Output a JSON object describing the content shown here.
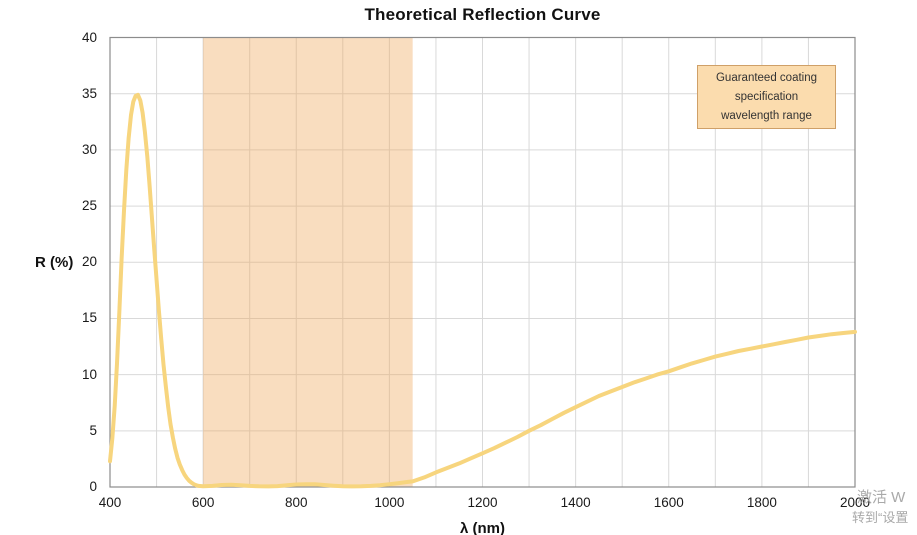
{
  "chart_data": {
    "type": "line",
    "title": "Theoretical Reflection Curve",
    "xlabel": "λ (nm)",
    "ylabel": "R (%)",
    "xlim": [
      400,
      2000
    ],
    "ylim": [
      0,
      40
    ],
    "x_ticks": [
      400,
      600,
      800,
      1000,
      1200,
      1400,
      1600,
      1800,
      2000
    ],
    "y_ticks": [
      0,
      5,
      10,
      15,
      20,
      25,
      30,
      35,
      40
    ],
    "x_grid_step": 100,
    "y_grid_step": 5,
    "grid": true,
    "legend_position": "none",
    "series": [
      {
        "name": "Theoretical reflection",
        "color": "#f7d57e",
        "line_width": 4,
        "points": [
          [
            400,
            2.3
          ],
          [
            405,
            4.3
          ],
          [
            410,
            7.2
          ],
          [
            415,
            11.0
          ],
          [
            420,
            15.5
          ],
          [
            425,
            20.3
          ],
          [
            430,
            24.6
          ],
          [
            435,
            28.2
          ],
          [
            440,
            31.0
          ],
          [
            445,
            33.1
          ],
          [
            450,
            34.3
          ],
          [
            455,
            34.8
          ],
          [
            460,
            34.9
          ],
          [
            465,
            34.4
          ],
          [
            470,
            33.3
          ],
          [
            475,
            31.6
          ],
          [
            480,
            29.4
          ],
          [
            485,
            26.8
          ],
          [
            490,
            24.0
          ],
          [
            495,
            21.2
          ],
          [
            500,
            18.4
          ],
          [
            505,
            15.7
          ],
          [
            510,
            13.2
          ],
          [
            515,
            10.9
          ],
          [
            520,
            8.9
          ],
          [
            525,
            7.1
          ],
          [
            530,
            5.6
          ],
          [
            535,
            4.4
          ],
          [
            540,
            3.4
          ],
          [
            545,
            2.6
          ],
          [
            550,
            2.0
          ],
          [
            555,
            1.5
          ],
          [
            560,
            1.1
          ],
          [
            565,
            0.8
          ],
          [
            570,
            0.55
          ],
          [
            575,
            0.38
          ],
          [
            580,
            0.25
          ],
          [
            585,
            0.16
          ],
          [
            590,
            0.1
          ],
          [
            600,
            0.06
          ],
          [
            620,
            0.1
          ],
          [
            640,
            0.18
          ],
          [
            660,
            0.2
          ],
          [
            680,
            0.16
          ],
          [
            700,
            0.1
          ],
          [
            720,
            0.06
          ],
          [
            740,
            0.05
          ],
          [
            760,
            0.08
          ],
          [
            780,
            0.15
          ],
          [
            800,
            0.22
          ],
          [
            820,
            0.25
          ],
          [
            840,
            0.24
          ],
          [
            860,
            0.18
          ],
          [
            880,
            0.12
          ],
          [
            900,
            0.07
          ],
          [
            920,
            0.05
          ],
          [
            940,
            0.06
          ],
          [
            960,
            0.1
          ],
          [
            980,
            0.16
          ],
          [
            1000,
            0.25
          ],
          [
            1020,
            0.35
          ],
          [
            1040,
            0.45
          ],
          [
            1050,
            0.5
          ],
          [
            1075,
            0.85
          ],
          [
            1100,
            1.3
          ],
          [
            1125,
            1.7
          ],
          [
            1150,
            2.1
          ],
          [
            1175,
            2.55
          ],
          [
            1200,
            3.0
          ],
          [
            1225,
            3.45
          ],
          [
            1250,
            3.95
          ],
          [
            1275,
            4.45
          ],
          [
            1300,
            5.0
          ],
          [
            1325,
            5.5
          ],
          [
            1350,
            6.05
          ],
          [
            1375,
            6.6
          ],
          [
            1400,
            7.1
          ],
          [
            1425,
            7.6
          ],
          [
            1450,
            8.1
          ],
          [
            1475,
            8.5
          ],
          [
            1500,
            8.9
          ],
          [
            1525,
            9.3
          ],
          [
            1550,
            9.65
          ],
          [
            1575,
            10.0
          ],
          [
            1600,
            10.3
          ],
          [
            1625,
            10.65
          ],
          [
            1650,
            11.0
          ],
          [
            1675,
            11.3
          ],
          [
            1700,
            11.6
          ],
          [
            1725,
            11.85
          ],
          [
            1750,
            12.1
          ],
          [
            1775,
            12.3
          ],
          [
            1800,
            12.5
          ],
          [
            1825,
            12.7
          ],
          [
            1850,
            12.9
          ],
          [
            1875,
            13.1
          ],
          [
            1900,
            13.3
          ],
          [
            1925,
            13.45
          ],
          [
            1950,
            13.6
          ],
          [
            1975,
            13.7
          ],
          [
            2000,
            13.8
          ]
        ]
      }
    ],
    "shaded_band": {
      "x_start": 600,
      "x_end": 1050,
      "fill": "rgba(240,166,86,0.38)",
      "label": "Guaranteed coating specification wavelength range"
    },
    "annotation": {
      "lines": [
        "Guaranteed coating",
        "specification",
        "wavelength range"
      ],
      "background": "#fbdcae",
      "border": "#cfa068"
    },
    "colors": {
      "grid": "#d9d9d9",
      "axis_border": "#8c8c8c",
      "tick_text": "#1a1a1a",
      "curve": "#f7d57e"
    }
  },
  "watermark": {
    "line1": "激活 W",
    "line2": "转到“设置"
  }
}
